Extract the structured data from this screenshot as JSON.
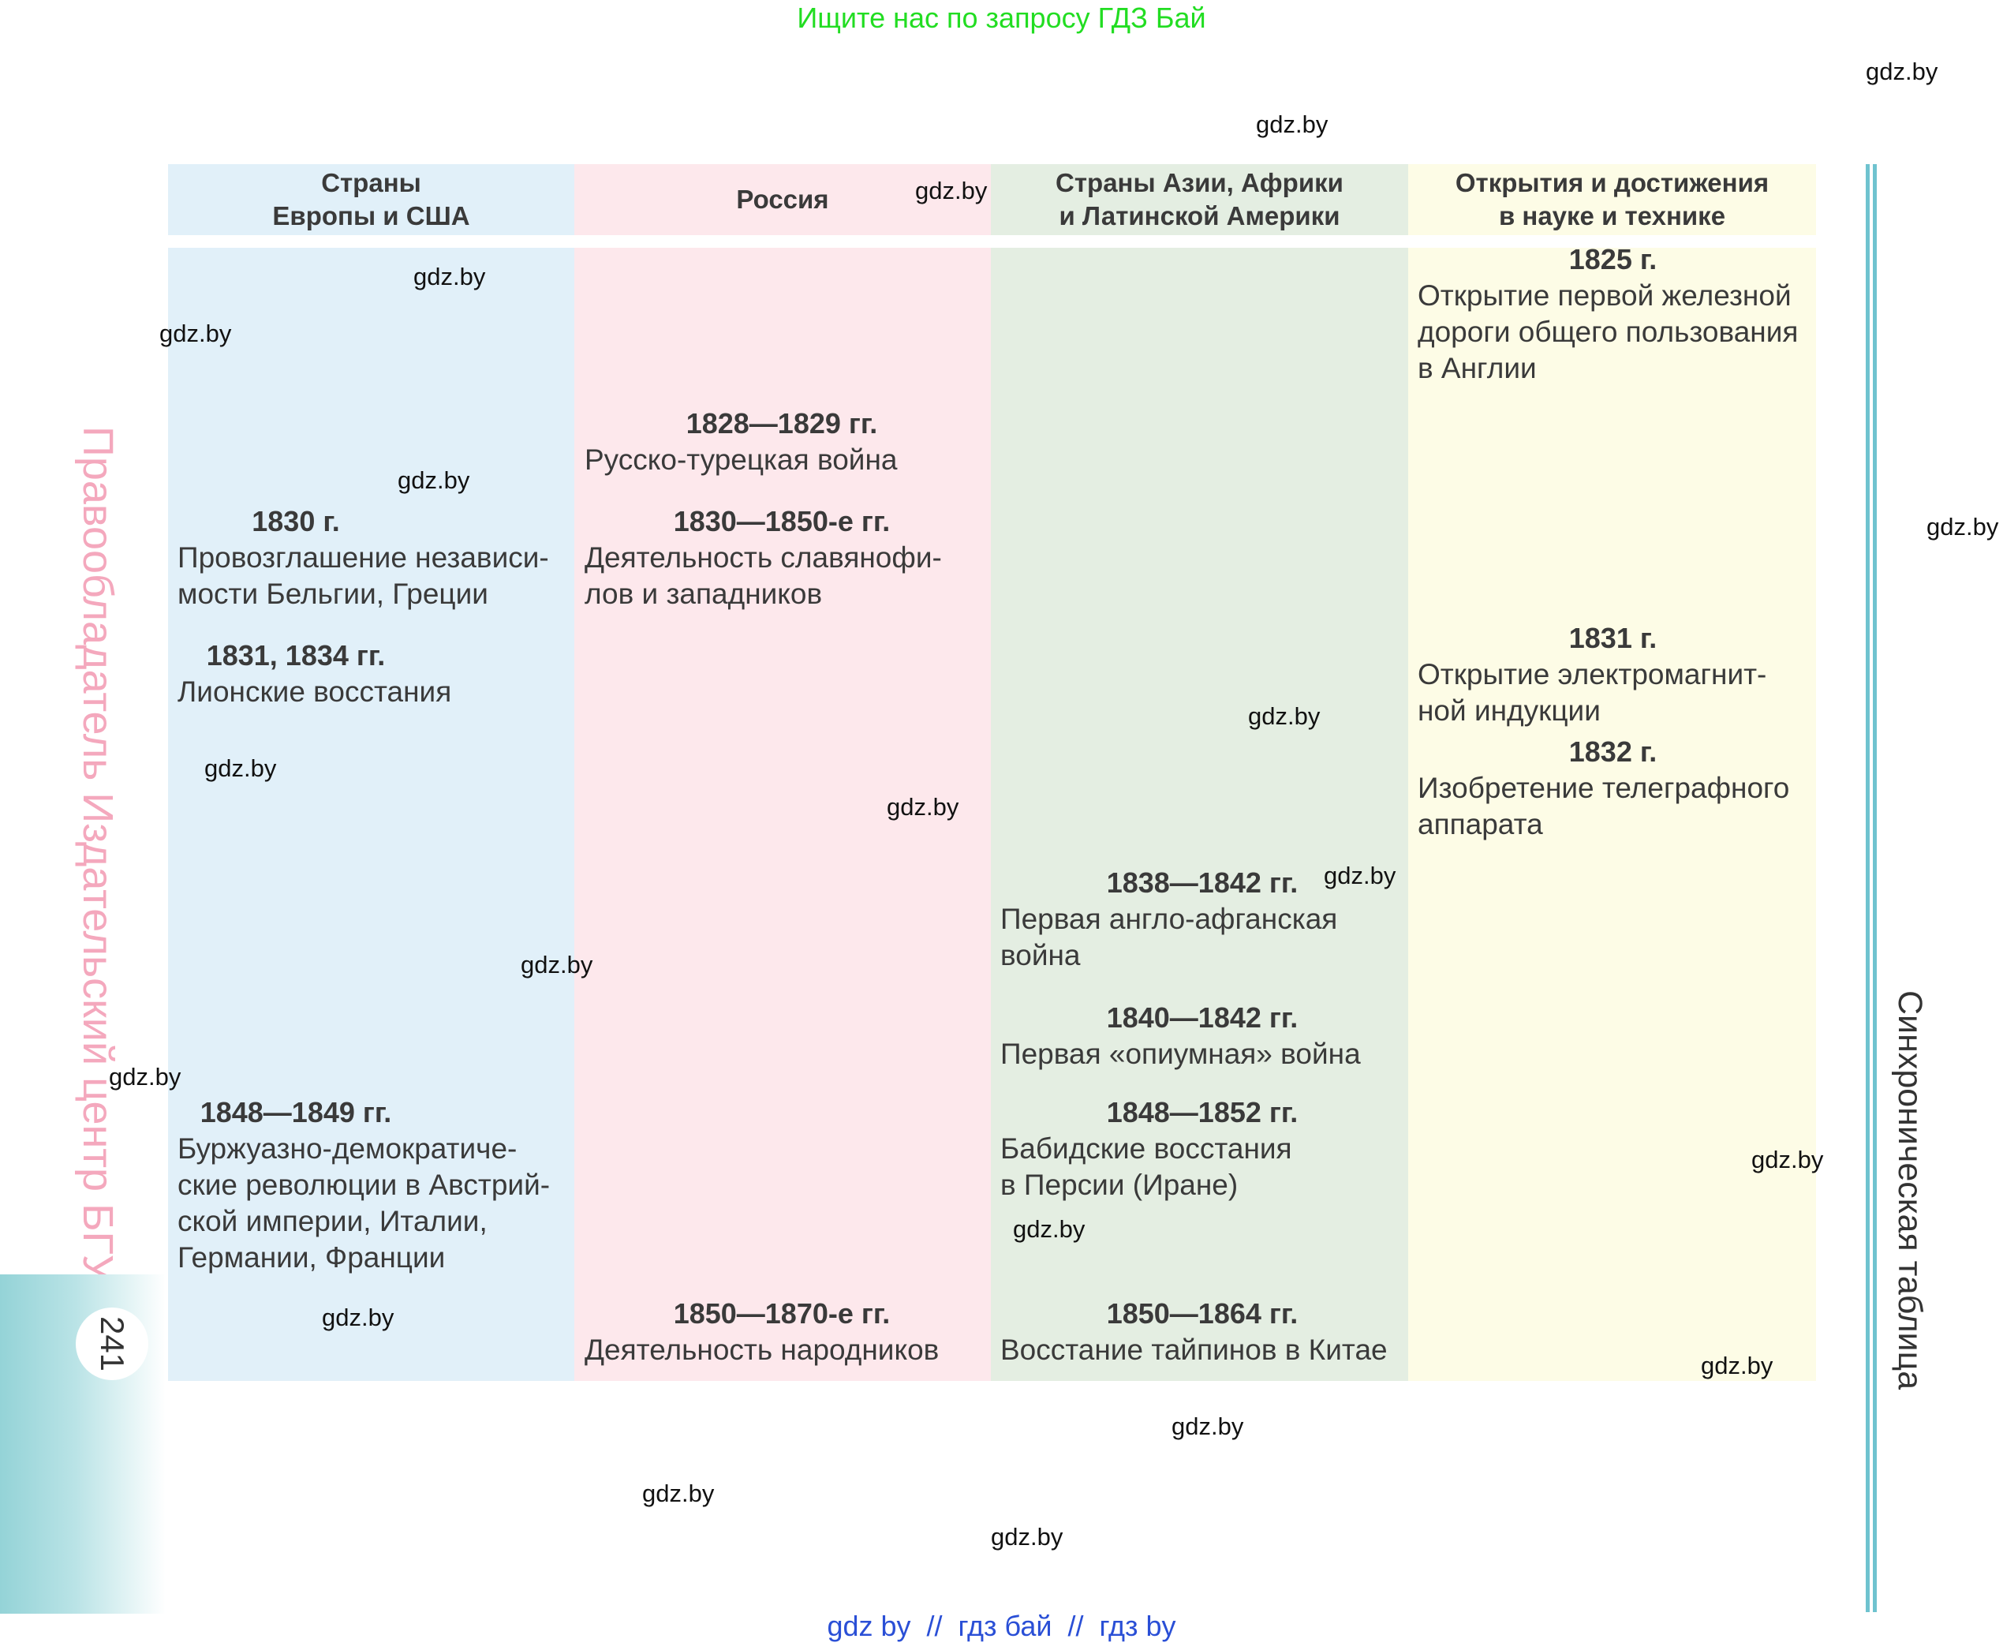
{
  "banner": "Ищите нас по запросу ГДЗ Бай",
  "footer": "gdz by  //  гдз бай  //  гдз by",
  "watermark": "gdz.by",
  "side_left": "Правообладатель Издательский центр БГУ",
  "side_right": "Синхроническая таблица",
  "page_number": "241",
  "colors": {
    "europe": "#e1f0f9",
    "russia": "#fde8ec",
    "asia": "#e4eee2",
    "science": "#fdfce6",
    "accent_line": "#6fc3cf",
    "banner": "#22dd22",
    "footer": "#2a4fd6"
  },
  "columns": {
    "europe": {
      "header": "Страны\nЕвропы и США",
      "entries": [
        {
          "year": "1830 г.",
          "text": "Провозглашение независи-\nмости Бельгии, Греции"
        },
        {
          "year": "1831, 1834 гг.",
          "text": "Лионские восстания"
        },
        {
          "year": "1848—1849 гг.",
          "text": "Буржуазно-демократиче-\nские революции в Австрий-\nской империи, Италии,\nГермании, Франции"
        }
      ]
    },
    "russia": {
      "header": "Россия",
      "entries": [
        {
          "year": "1828—1829 гг.",
          "text": "Русско-турецкая война"
        },
        {
          "year": "1830—1850-е гг.",
          "text": "Деятельность славянофи-\nлов и западников"
        },
        {
          "year": "1850—1870-е гг.",
          "text": "Деятельность народников"
        }
      ]
    },
    "asia": {
      "header": "Страны Азии, Африки\nи Латинской Америки",
      "entries": [
        {
          "year": "1838—1842 гг.",
          "text": "Первая англо-афганская\nвойна"
        },
        {
          "year": "1840—1842 гг.",
          "text": "Первая «опиумная» война"
        },
        {
          "year": "1848—1852 гг.",
          "text": "Бабидские восстания\nв Персии (Иране)"
        },
        {
          "year": "1850—1864 гг.",
          "text": "Восстание тайпинов в Китае"
        }
      ]
    },
    "science": {
      "header": "Открытия и достижения\nв науке и технике",
      "entries": [
        {
          "year": "1825 г.",
          "text": "Открытие первой железной\nдороги общего пользования\nв Англии"
        },
        {
          "year": "1831 г.",
          "text": "Открытие электромагнит-\nной индукции"
        },
        {
          "year": "1832 г.",
          "text": "Изобретение телеграфного\nаппарата"
        }
      ]
    }
  }
}
